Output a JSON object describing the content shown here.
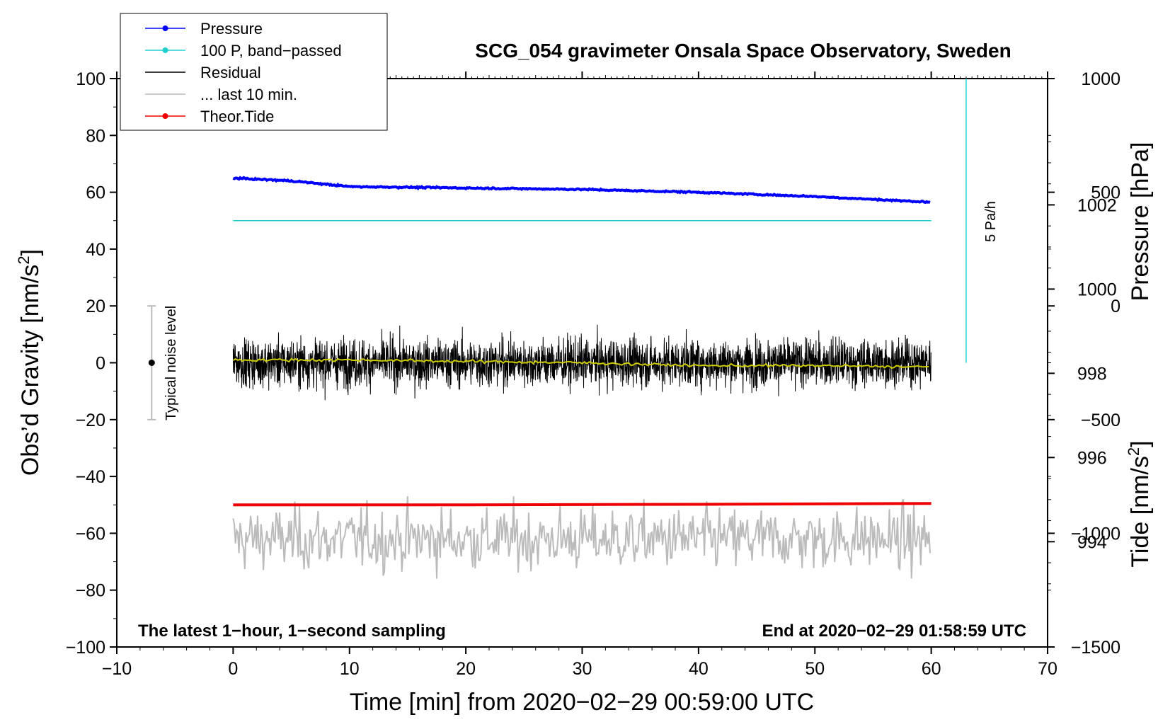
{
  "chart_data": {
    "type": "line",
    "title": "SCG_054 gravimeter Onsala Space Observatory, Sweden",
    "xlabel": "Time [min] from 2020−02−29 00:59:00 UTC",
    "ylabel": {
      "text": "Obs’d Gravity [nm/s",
      "sup": "2",
      "tail": "]"
    },
    "y2label_pressure": "Pressure [hPa]",
    "y2label_tide": {
      "text": "Tide [nm/s",
      "sup": "2",
      "tail": "]"
    },
    "xlim": [
      -10,
      70
    ],
    "ylim": [
      -100,
      100
    ],
    "pressure_axis_range": [
      991.5,
      1005.0
    ],
    "tide_axis_range": [
      -1500,
      1000
    ],
    "xticks": [
      "−10",
      "0",
      "10",
      "20",
      "30",
      "40",
      "50",
      "60",
      "70"
    ],
    "xtick_values": [
      -10,
      0,
      10,
      20,
      30,
      40,
      50,
      60,
      70
    ],
    "yticks": [
      "−100",
      "−80",
      "−60",
      "−40",
      "−20",
      "0",
      "20",
      "40",
      "60",
      "80",
      "100"
    ],
    "ytick_values": [
      -100,
      -80,
      -60,
      -40,
      -20,
      0,
      20,
      40,
      60,
      80,
      100
    ],
    "pressure_ticks": [
      "994",
      "996",
      "998",
      "1000",
      "1002"
    ],
    "pressure_tick_values": [
      994,
      996,
      998,
      1000,
      1002
    ],
    "tide_ticks": [
      "−1500",
      "−1000",
      "−500",
      "0",
      "500",
      "1000"
    ],
    "tide_tick_values": [
      -1500,
      -1000,
      -500,
      0,
      500,
      1000
    ],
    "legend": [
      {
        "label": "Pressure",
        "color": "#0000ff",
        "marker": true
      },
      {
        "label": "100 P, band−passed",
        "color": "#20d0d0",
        "marker": true
      },
      {
        "label": "Residual",
        "color": "#000000",
        "marker": false
      },
      {
        "label": "... last 10 min.",
        "color": "#bbbbbb",
        "marker": false
      },
      {
        "label": "Theor.Tide",
        "color": "#ee0000",
        "marker": true
      }
    ],
    "series": [
      {
        "name": "Pressure",
        "color": "#0000ff",
        "x": [
          0,
          5,
          10,
          20,
          30,
          40,
          50,
          55,
          60
        ],
        "values": [
          65,
          64,
          62,
          61.5,
          61,
          60,
          58.5,
          57.5,
          56.5
        ]
      },
      {
        "name": "100 P, band−passed",
        "color": "#20d0d0",
        "x": [
          0,
          60
        ],
        "values": [
          50,
          50
        ]
      },
      {
        "name": "Residual",
        "color": "#000000",
        "x_range": [
          0,
          60
        ],
        "center": 0,
        "amplitude": 14
      },
      {
        "name": "Residual smoothed",
        "color": "#cccc00",
        "x": [
          0,
          10,
          20,
          30,
          40,
          50,
          60
        ],
        "values": [
          1,
          1,
          0.5,
          0,
          -1,
          -1,
          -1.5
        ]
      },
      {
        "name": "... last 10 min.",
        "color": "#bbbbbb",
        "x_range": [
          0,
          60
        ],
        "center": -62,
        "amplitude": 14
      },
      {
        "name": "Theor.Tide",
        "color": "#ee0000",
        "x": [
          0,
          20,
          40,
          60
        ],
        "values": [
          -50,
          -50,
          -49.8,
          -49.5
        ]
      }
    ],
    "noise_bar": {
      "label": "Typical noise level",
      "x": -7,
      "center": 0,
      "half_range": 20
    },
    "scale_marker": {
      "label": "5 Pa/h",
      "x": 63,
      "y_from": 0,
      "y_to": 100,
      "color": "#20d0d0"
    },
    "note_left": "The latest 1−hour, 1−second sampling",
    "note_right": "End at 2020−02−29 01:58:59 UTC"
  }
}
